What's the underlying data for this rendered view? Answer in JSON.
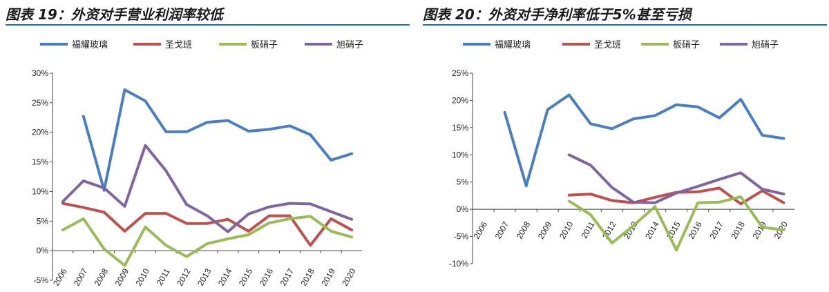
{
  "chart_data": [
    {
      "type": "line",
      "title": "图表 19：外资对手营业利润率较低",
      "xlabel": "",
      "ylabel": "",
      "categories": [
        "2006",
        "2007",
        "2008",
        "2009",
        "2010",
        "2011",
        "2012",
        "2013",
        "2014",
        "2015",
        "2016",
        "2017",
        "2018",
        "2019",
        "2020"
      ],
      "ylim": [
        -5,
        30
      ],
      "yticks": [
        "-5%",
        "0%",
        "5%",
        "10%",
        "15%",
        "20%",
        "25%",
        "30%"
      ],
      "legend": "top",
      "series": [
        {
          "name": "福耀玻璃",
          "color": "#4a7ec4",
          "values": [
            null,
            22.7,
            10.2,
            27.2,
            25.3,
            20.1,
            20.1,
            21.7,
            22.0,
            20.2,
            20.5,
            21.1,
            19.6,
            15.3,
            16.4
          ]
        },
        {
          "name": "圣戈班",
          "color": "#c0504d",
          "values": [
            8.0,
            7.3,
            6.5,
            3.3,
            6.3,
            6.3,
            4.6,
            4.6,
            5.3,
            3.3,
            5.9,
            5.9,
            0.9,
            5.4,
            3.5
          ]
        },
        {
          "name": "板硝子",
          "color": "#9bbb59",
          "values": [
            3.5,
            5.4,
            0.3,
            -2.5,
            4.0,
            0.9,
            -1.0,
            1.2,
            2.0,
            2.7,
            4.7,
            5.4,
            5.8,
            3.3,
            2.3
          ]
        },
        {
          "name": "旭硝子",
          "color": "#8064a2",
          "values": [
            8.3,
            11.8,
            10.6,
            7.5,
            17.8,
            13.5,
            7.8,
            5.9,
            3.2,
            6.2,
            7.4,
            8.0,
            7.9,
            6.6,
            5.3
          ]
        }
      ]
    },
    {
      "type": "line",
      "title": "图表 20：外资对手净利率低于5%甚至亏损",
      "xlabel": "",
      "ylabel": "",
      "categories": [
        "2006",
        "2007",
        "2008",
        "2009",
        "2010",
        "2011",
        "2012",
        "2013",
        "2014",
        "2015",
        "2016",
        "2017",
        "2018",
        "2019",
        "2020"
      ],
      "ylim": [
        -10,
        25
      ],
      "yticks": [
        "-10%",
        "-5%",
        "0%",
        "5%",
        "10%",
        "15%",
        "20%",
        "25%"
      ],
      "legend": "top",
      "series": [
        {
          "name": "福耀玻璃",
          "color": "#4a7ec4",
          "values": [
            null,
            17.8,
            4.3,
            18.3,
            21.0,
            15.7,
            14.8,
            16.6,
            17.2,
            19.2,
            18.8,
            16.8,
            20.2,
            13.6,
            13.0
          ]
        },
        {
          "name": "圣戈班",
          "color": "#c0504d",
          "values": [
            null,
            null,
            null,
            null,
            2.6,
            2.8,
            1.6,
            1.2,
            2.2,
            3.1,
            3.2,
            3.9,
            1.0,
            3.4,
            1.2
          ]
        },
        {
          "name": "板硝子",
          "color": "#9bbb59",
          "values": [
            null,
            null,
            null,
            null,
            1.5,
            -1.0,
            -6.2,
            -3.0,
            0.5,
            -7.5,
            1.2,
            1.3,
            2.3,
            -3.3,
            -3.8
          ]
        },
        {
          "name": "旭硝子",
          "color": "#8064a2",
          "values": [
            null,
            null,
            null,
            null,
            10.0,
            8.1,
            4.0,
            1.3,
            1.2,
            3.0,
            4.2,
            5.5,
            6.7,
            3.7,
            2.8
          ]
        }
      ]
    }
  ]
}
